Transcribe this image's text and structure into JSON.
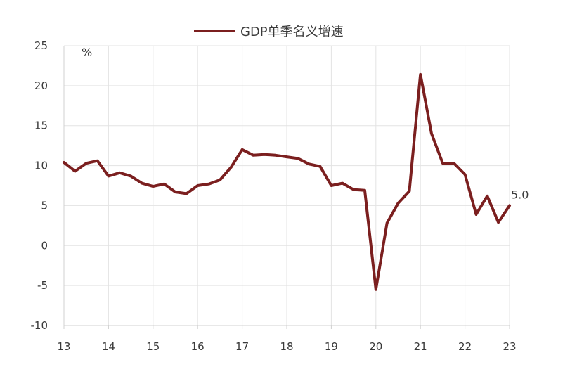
{
  "chart_data": {
    "type": "line",
    "legend": {
      "label": "GDP单季名义增速",
      "placement": "top-center"
    },
    "unit": "%",
    "ylim": [
      -10,
      25
    ],
    "yticks": [
      "25",
      "20",
      "15",
      "10",
      "5",
      "0",
      "-5",
      "-10"
    ],
    "ytick_values": [
      25,
      20,
      15,
      10,
      5,
      0,
      -5,
      -10
    ],
    "xlim": [
      13,
      23
    ],
    "xticks": [
      "13",
      "14",
      "15",
      "16",
      "17",
      "18",
      "19",
      "20",
      "21",
      "22",
      "23"
    ],
    "xtick_values": [
      13,
      14,
      15,
      16,
      17,
      18,
      19,
      20,
      21,
      22,
      23
    ],
    "grid": true,
    "series": [
      {
        "name": "GDP单季名义增速",
        "color": "#7b1f1f",
        "x": [
          13.0,
          13.25,
          13.5,
          13.75,
          14.0,
          14.25,
          14.5,
          14.75,
          15.0,
          15.25,
          15.5,
          15.75,
          16.0,
          16.25,
          16.5,
          16.75,
          17.0,
          17.25,
          17.5,
          17.75,
          18.0,
          18.25,
          18.5,
          18.75,
          19.0,
          19.25,
          19.5,
          19.75,
          20.0,
          20.25,
          20.5,
          20.75,
          21.0,
          21.25,
          21.5,
          21.75,
          22.0,
          22.25,
          22.5,
          22.75,
          23.0
        ],
        "y": [
          10.4,
          9.3,
          10.3,
          10.6,
          8.7,
          9.1,
          8.7,
          7.8,
          7.4,
          7.7,
          6.7,
          6.5,
          7.5,
          7.7,
          8.2,
          9.8,
          12.0,
          11.3,
          11.4,
          11.3,
          11.1,
          10.9,
          10.2,
          9.9,
          7.5,
          7.8,
          7.0,
          6.9,
          -5.5,
          2.8,
          5.3,
          6.8,
          21.4,
          14.0,
          10.3,
          10.3,
          8.9,
          3.9,
          6.2,
          2.9,
          5.0
        ]
      }
    ],
    "annotations": [
      {
        "text": "5.0",
        "x": 23.0,
        "y": 5.0
      }
    ]
  }
}
